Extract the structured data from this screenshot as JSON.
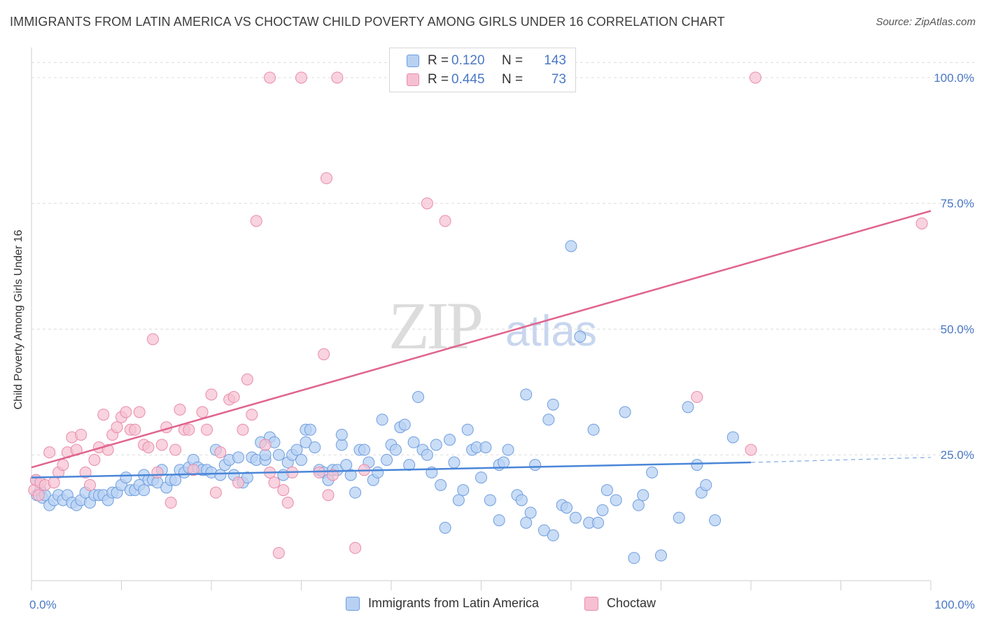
{
  "title": "IMMIGRANTS FROM LATIN AMERICA VS CHOCTAW CHILD POVERTY AMONG GIRLS UNDER 16 CORRELATION CHART",
  "source": "Source: ZipAtlas.com",
  "watermark": {
    "zip": "ZIP",
    "atlas": "atlas"
  },
  "colors": {
    "blue": "#4a86d8",
    "blue_fill": "#b8d1f3",
    "pink": "#e0648e",
    "pink_fill": "#f6c0d2",
    "tick": "#4a78c6"
  },
  "legend_top": [
    {
      "r_key": "R =",
      "r": "0.120",
      "n_key": "N =",
      "n": "143"
    },
    {
      "r_key": "R =",
      "r": "0.445",
      "n_key": "N =",
      "n": "73"
    }
  ],
  "chart_data": {
    "type": "scatter",
    "xlabel": "",
    "ylabel": "Child Poverty Among Girls Under 16",
    "xlim": [
      0,
      100
    ],
    "ylim": [
      0,
      105
    ],
    "x_tick_labels": [
      "0.0%",
      "100.0%"
    ],
    "y_tick_labels": [
      "25.0%",
      "50.0%",
      "75.0%",
      "100.0%"
    ],
    "y_ticks": [
      25,
      50,
      75,
      100
    ],
    "grid": "horizontal dashed",
    "legend": "bottom-center",
    "series": [
      {
        "name": "Immigrants from Latin America",
        "r": 0.12,
        "n": 143,
        "trend": {
          "x0": 0,
          "y0": 20.5,
          "x1": 80,
          "y1": 23.5,
          "dashed_to": 100,
          "dashed_y": 24.5
        },
        "points": [
          [
            0.5,
            20
          ],
          [
            0.6,
            17
          ],
          [
            1,
            18
          ],
          [
            1.2,
            16.5
          ],
          [
            1.5,
            17
          ],
          [
            2,
            15
          ],
          [
            2.5,
            16
          ],
          [
            3,
            17
          ],
          [
            3.5,
            16
          ],
          [
            4,
            17
          ],
          [
            4.5,
            15.5
          ],
          [
            5,
            15
          ],
          [
            5.5,
            16
          ],
          [
            6,
            17.5
          ],
          [
            6.5,
            15.5
          ],
          [
            7,
            17
          ],
          [
            7.5,
            17
          ],
          [
            8,
            17
          ],
          [
            8.5,
            16
          ],
          [
            9,
            17.5
          ],
          [
            9.5,
            17.5
          ],
          [
            10,
            19
          ],
          [
            10.5,
            20.5
          ],
          [
            11,
            18
          ],
          [
            11.5,
            18
          ],
          [
            12,
            19
          ],
          [
            12.5,
            21
          ],
          [
            12.5,
            18
          ],
          [
            13,
            20
          ],
          [
            13.5,
            20
          ],
          [
            14,
            19.5
          ],
          [
            14.5,
            22
          ],
          [
            15,
            18.5
          ],
          [
            15.5,
            20
          ],
          [
            16,
            20
          ],
          [
            16.5,
            22
          ],
          [
            17,
            21.5
          ],
          [
            17.5,
            22.5
          ],
          [
            18,
            24
          ],
          [
            18.5,
            22.5
          ],
          [
            19,
            22
          ],
          [
            19.5,
            22
          ],
          [
            20,
            21.5
          ],
          [
            20.5,
            26
          ],
          [
            21,
            21
          ],
          [
            21.5,
            23
          ],
          [
            22,
            24
          ],
          [
            22.5,
            21
          ],
          [
            23,
            24.5
          ],
          [
            23.5,
            19.5
          ],
          [
            24,
            20.5
          ],
          [
            24.5,
            24.5
          ],
          [
            25,
            24
          ],
          [
            25.5,
            27.5
          ],
          [
            26,
            24
          ],
          [
            26,
            25
          ],
          [
            26.5,
            28.5
          ],
          [
            27,
            27.5
          ],
          [
            27.5,
            25
          ],
          [
            28,
            21
          ],
          [
            28.5,
            23.5
          ],
          [
            29,
            25
          ],
          [
            29.5,
            26
          ],
          [
            30,
            24
          ],
          [
            30.5,
            27.5
          ],
          [
            30.5,
            30
          ],
          [
            31,
            30
          ],
          [
            31.5,
            26.5
          ],
          [
            32,
            22
          ],
          [
            32.5,
            21.5
          ],
          [
            33,
            20
          ],
          [
            33.5,
            22
          ],
          [
            34,
            22
          ],
          [
            34.5,
            27
          ],
          [
            34.5,
            29
          ],
          [
            35,
            23
          ],
          [
            35.5,
            21
          ],
          [
            36,
            17.5
          ],
          [
            36.5,
            26
          ],
          [
            37,
            26
          ],
          [
            37.5,
            23.5
          ],
          [
            38,
            20
          ],
          [
            38.5,
            21.5
          ],
          [
            39,
            32
          ],
          [
            39.5,
            24
          ],
          [
            40,
            27
          ],
          [
            40.5,
            26
          ],
          [
            41,
            30.5
          ],
          [
            41.5,
            31
          ],
          [
            42,
            23
          ],
          [
            42.5,
            27.5
          ],
          [
            43,
            36.5
          ],
          [
            43.5,
            26
          ],
          [
            44,
            25
          ],
          [
            44.5,
            21.5
          ],
          [
            45,
            27
          ],
          [
            45.5,
            19
          ],
          [
            46,
            10.5
          ],
          [
            46.5,
            28
          ],
          [
            47,
            23.5
          ],
          [
            47.5,
            16
          ],
          [
            48,
            18
          ],
          [
            48.5,
            30
          ],
          [
            49,
            26
          ],
          [
            49.5,
            26.5
          ],
          [
            50,
            20.5
          ],
          [
            50.5,
            26.5
          ],
          [
            51,
            16
          ],
          [
            52,
            12
          ],
          [
            52,
            23
          ],
          [
            52.5,
            23.5
          ],
          [
            53,
            26
          ],
          [
            54,
            17
          ],
          [
            54.5,
            16
          ],
          [
            55,
            37
          ],
          [
            55,
            11.5
          ],
          [
            55.5,
            13.5
          ],
          [
            56,
            23
          ],
          [
            57,
            10
          ],
          [
            57.5,
            32
          ],
          [
            58,
            35
          ],
          [
            58,
            9
          ],
          [
            59,
            15
          ],
          [
            59.5,
            14.5
          ],
          [
            60,
            66.5
          ],
          [
            60.5,
            12.5
          ],
          [
            61,
            48.5
          ],
          [
            62,
            11.5
          ],
          [
            62.5,
            30
          ],
          [
            63,
            11.5
          ],
          [
            63.5,
            14
          ],
          [
            64,
            18
          ],
          [
            65,
            16
          ],
          [
            66,
            33.5
          ],
          [
            67,
            4.5
          ],
          [
            67.5,
            15
          ],
          [
            68,
            17
          ],
          [
            69,
            21.5
          ],
          [
            70,
            5
          ],
          [
            72,
            12.5
          ],
          [
            73,
            34.5
          ],
          [
            74,
            23
          ],
          [
            74.5,
            17.5
          ],
          [
            75,
            19
          ],
          [
            76,
            12
          ],
          [
            78,
            28.5
          ]
        ]
      },
      {
        "name": "Choctaw",
        "r": 0.445,
        "n": 73,
        "trend": {
          "x0": 0,
          "y0": 22.5,
          "x1": 100,
          "y1": 73.5
        },
        "points": [
          [
            0.3,
            18
          ],
          [
            0.5,
            20
          ],
          [
            0.8,
            17
          ],
          [
            1,
            19.5
          ],
          [
            1.5,
            19
          ],
          [
            2,
            25.5
          ],
          [
            2.5,
            19.5
          ],
          [
            3,
            21.5
          ],
          [
            3.5,
            23
          ],
          [
            4,
            25.5
          ],
          [
            4.5,
            28.5
          ],
          [
            5,
            26
          ],
          [
            5.5,
            29
          ],
          [
            6,
            21.5
          ],
          [
            6.5,
            19
          ],
          [
            7,
            24
          ],
          [
            7.5,
            26.5
          ],
          [
            8,
            33
          ],
          [
            8.5,
            26
          ],
          [
            9,
            29
          ],
          [
            9.5,
            30.5
          ],
          [
            10,
            32.5
          ],
          [
            10.5,
            33.5
          ],
          [
            11,
            30
          ],
          [
            11.5,
            30
          ],
          [
            12,
            33.5
          ],
          [
            12.5,
            27
          ],
          [
            13,
            26.5
          ],
          [
            13.5,
            48
          ],
          [
            14,
            21.5
          ],
          [
            14.5,
            27
          ],
          [
            15,
            30.5
          ],
          [
            15.5,
            15.5
          ],
          [
            16,
            26
          ],
          [
            16.5,
            34
          ],
          [
            17,
            30
          ],
          [
            17.5,
            30
          ],
          [
            18,
            22
          ],
          [
            19,
            33.5
          ],
          [
            19.5,
            30
          ],
          [
            20,
            37
          ],
          [
            20.5,
            17.5
          ],
          [
            21,
            25.5
          ],
          [
            22,
            36
          ],
          [
            22.5,
            36.5
          ],
          [
            23,
            19.5
          ],
          [
            23.5,
            30
          ],
          [
            24,
            40
          ],
          [
            24.5,
            33
          ],
          [
            25,
            71.5
          ],
          [
            26,
            27
          ],
          [
            26.5,
            21.5
          ],
          [
            27,
            19.5
          ],
          [
            27.5,
            5.5
          ],
          [
            28,
            18
          ],
          [
            28.5,
            15.5
          ],
          [
            29,
            21.5
          ],
          [
            30,
            100
          ],
          [
            32,
            21.5
          ],
          [
            32.5,
            45
          ],
          [
            32.8,
            80
          ],
          [
            33,
            17
          ],
          [
            33.5,
            21
          ],
          [
            34,
            100
          ],
          [
            36,
            6.5
          ],
          [
            37,
            22
          ],
          [
            44,
            75
          ],
          [
            46,
            71.5
          ],
          [
            26.5,
            100
          ],
          [
            74,
            36.5
          ],
          [
            80,
            26
          ],
          [
            80.5,
            100
          ],
          [
            99,
            71
          ]
        ]
      }
    ]
  },
  "legend_bottom": [
    {
      "label": "Immigrants from Latin America"
    },
    {
      "label": "Choctaw"
    }
  ]
}
